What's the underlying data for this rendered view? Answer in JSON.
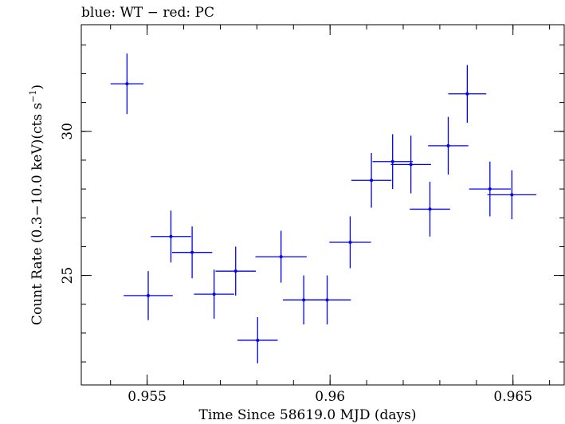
{
  "chart_data": {
    "type": "scatter",
    "title": "blue: WT − red: PC",
    "xlabel": "Time Since 58619.0 MJD (days)",
    "ylabel_main": "Count Rate (0.3−10.0 keV)(cts s",
    "ylabel_exp": "−1",
    "ylabel_close": ")",
    "xlim": [
      0.9532,
      0.9664
    ],
    "ylim": [
      21.2,
      33.7
    ],
    "x_ticks": [
      {
        "value": 0.955,
        "label": "0.955"
      },
      {
        "value": 0.96,
        "label": "0.96"
      },
      {
        "value": 0.965,
        "label": "0.965"
      }
    ],
    "y_ticks": [
      {
        "value": 25,
        "label": "25"
      },
      {
        "value": 30,
        "label": "30"
      }
    ],
    "x_minor_step": 0.001,
    "y_minor_step": 1,
    "grid": false,
    "series": [
      {
        "color": "#0000ff",
        "points": [
          {
            "x": 0.95445,
            "y": 31.65,
            "xerr": 0.00045,
            "yerr": 1.05
          },
          {
            "x": 0.95503,
            "y": 24.3,
            "xerr": 0.00067,
            "yerr": 0.85
          },
          {
            "x": 0.95565,
            "y": 26.35,
            "xerr": 0.00055,
            "yerr": 0.9
          },
          {
            "x": 0.95623,
            "y": 25.8,
            "xerr": 0.00055,
            "yerr": 0.9
          },
          {
            "x": 0.95683,
            "y": 24.35,
            "xerr": 0.00055,
            "yerr": 0.85
          },
          {
            "x": 0.95742,
            "y": 25.15,
            "xerr": 0.00055,
            "yerr": 0.85
          },
          {
            "x": 0.95802,
            "y": 22.75,
            "xerr": 0.00055,
            "yerr": 0.8
          },
          {
            "x": 0.95866,
            "y": 25.65,
            "xerr": 0.0007,
            "yerr": 0.9
          },
          {
            "x": 0.95928,
            "y": 24.15,
            "xerr": 0.00057,
            "yerr": 0.85
          },
          {
            "x": 0.95992,
            "y": 24.15,
            "xerr": 0.00065,
            "yerr": 0.85
          },
          {
            "x": 0.96055,
            "y": 26.15,
            "xerr": 0.00057,
            "yerr": 0.9
          },
          {
            "x": 0.96113,
            "y": 28.3,
            "xerr": 0.00055,
            "yerr": 0.95
          },
          {
            "x": 0.96171,
            "y": 28.95,
            "xerr": 0.00055,
            "yerr": 0.95
          },
          {
            "x": 0.96221,
            "y": 28.85,
            "xerr": 0.00055,
            "yerr": 1.0
          },
          {
            "x": 0.96273,
            "y": 27.3,
            "xerr": 0.00055,
            "yerr": 0.95
          },
          {
            "x": 0.96323,
            "y": 29.5,
            "xerr": 0.00055,
            "yerr": 1.0
          },
          {
            "x": 0.96375,
            "y": 31.3,
            "xerr": 0.00052,
            "yerr": 1.0
          },
          {
            "x": 0.96437,
            "y": 28.0,
            "xerr": 0.00057,
            "yerr": 0.95
          },
          {
            "x": 0.96497,
            "y": 27.8,
            "xerr": 0.00067,
            "yerr": 0.85
          }
        ]
      }
    ]
  }
}
